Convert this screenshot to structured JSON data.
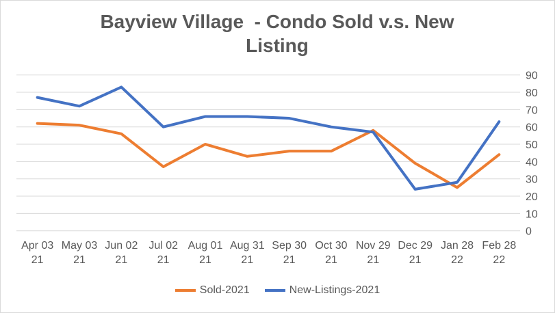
{
  "chart_data": {
    "type": "line",
    "title": "Bayview Village  - Condo Sold v.s. New Listing",
    "categories": [
      [
        "Apr 03",
        "21"
      ],
      [
        "May 03",
        "21"
      ],
      [
        "Jun 02",
        "21"
      ],
      [
        "Jul 02",
        "21"
      ],
      [
        "Aug 01",
        "21"
      ],
      [
        "Aug 31",
        "21"
      ],
      [
        "Sep 30",
        "21"
      ],
      [
        "Oct 30",
        "21"
      ],
      [
        "Nov 29",
        "21"
      ],
      [
        "Dec 29",
        "21"
      ],
      [
        "Jan 28",
        "22"
      ],
      [
        "Feb 28",
        "22"
      ]
    ],
    "series": [
      {
        "name": "Sold-2021",
        "color": "#ED7D31",
        "values": [
          62,
          61,
          56,
          37,
          50,
          43,
          46,
          46,
          58,
          39,
          25,
          44
        ]
      },
      {
        "name": "New-Listings-2021",
        "color": "#4472C4",
        "values": [
          77,
          72,
          83,
          60,
          66,
          66,
          65,
          60,
          57,
          24,
          28,
          63
        ]
      }
    ],
    "ylim": [
      0,
      90
    ],
    "yticks": [
      "0",
      "10",
      "20",
      "30",
      "40",
      "50",
      "60",
      "70",
      "80",
      "90"
    ],
    "yaxis_side": "right",
    "grid": true,
    "legend": "bottom"
  }
}
